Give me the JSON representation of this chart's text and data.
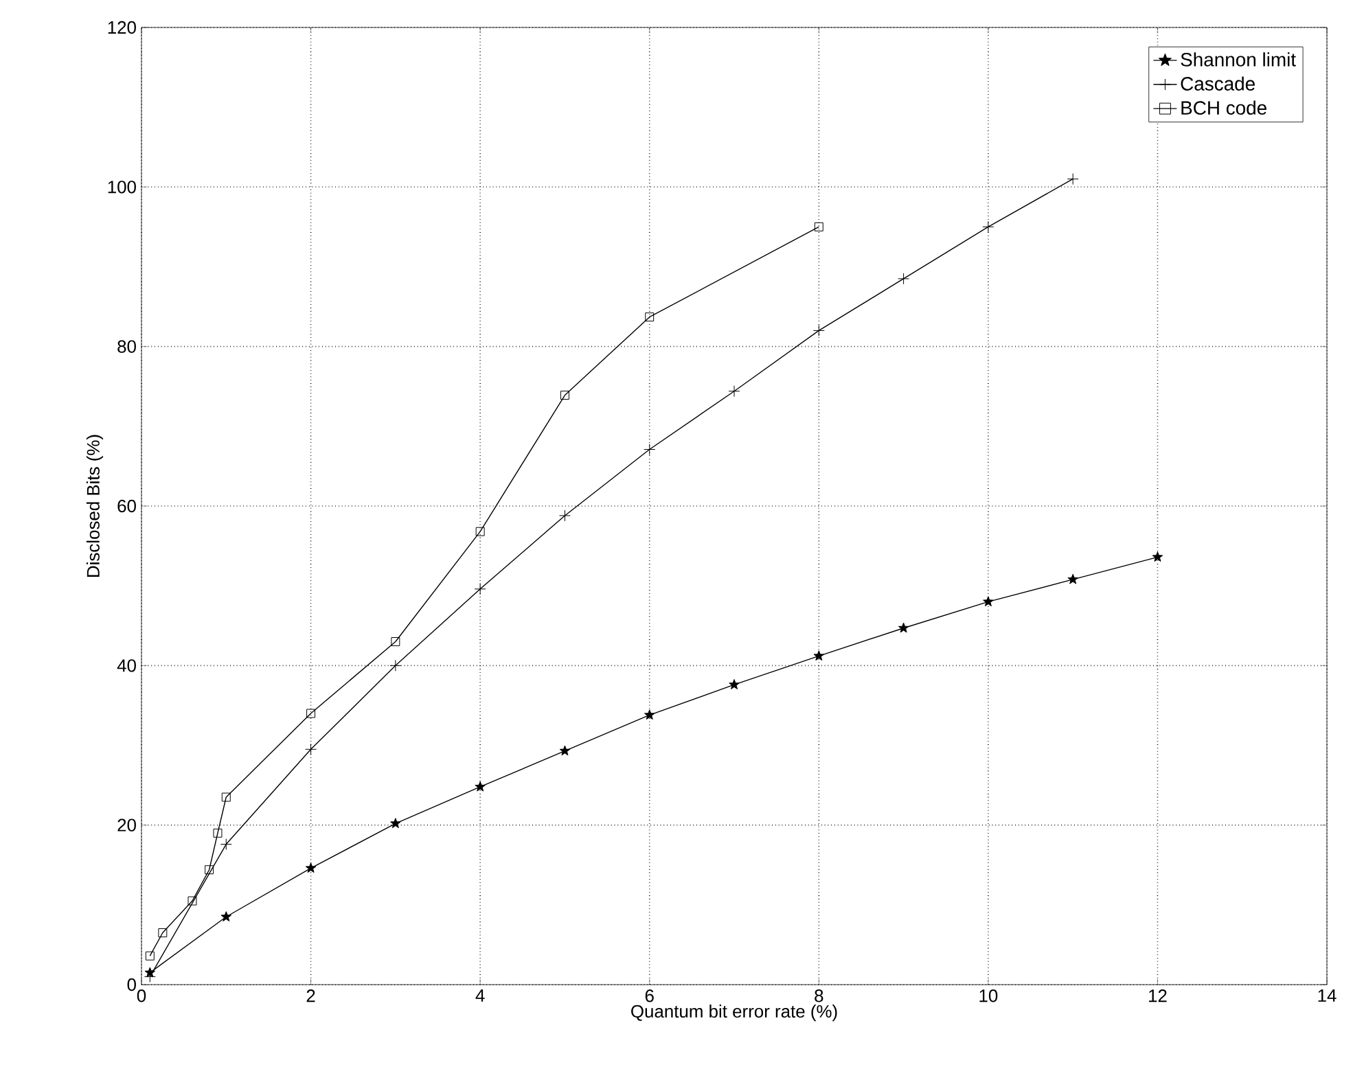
{
  "chart_data": {
    "type": "line",
    "xlabel": "Quantum bit error rate (%)",
    "ylabel": "Disclosed Bits (%)",
    "xlim": [
      0,
      14
    ],
    "ylim": [
      0,
      120
    ],
    "xticks": [
      0,
      2,
      4,
      6,
      8,
      10,
      12,
      14
    ],
    "yticks": [
      0,
      20,
      40,
      60,
      80,
      100,
      120
    ],
    "grid": true,
    "legend": "top right",
    "line_style": "solid",
    "series": [
      {
        "name": "Shannon limit",
        "color": "#000000",
        "marker": "star",
        "x": [
          0.1,
          1,
          2,
          3,
          4,
          5,
          6,
          7,
          8,
          9,
          10,
          11,
          12
        ],
        "values": [
          1.5,
          8.5,
          14.6,
          20.2,
          24.8,
          29.3,
          33.8,
          37.6,
          41.2,
          44.7,
          48,
          50.8,
          53.6
        ]
      },
      {
        "name": "Cascade",
        "color": "#000000",
        "marker": "cross",
        "x": [
          0.1,
          1,
          2,
          3,
          4,
          5,
          6,
          7,
          8,
          9,
          10,
          11
        ],
        "values": [
          1,
          17.6,
          29.5,
          40,
          49.6,
          58.8,
          67.1,
          74.4,
          82,
          88.5,
          95,
          101
        ]
      },
      {
        "name": "BCH code",
        "color": "#000000",
        "marker": "square",
        "x": [
          0.1,
          0.25,
          0.6,
          0.8,
          0.9,
          1,
          2,
          3,
          4,
          5,
          6,
          8
        ],
        "values": [
          3.6,
          6.5,
          10.5,
          14.4,
          19,
          23.5,
          34,
          43,
          56.8,
          73.9,
          83.7,
          95
        ]
      }
    ]
  }
}
